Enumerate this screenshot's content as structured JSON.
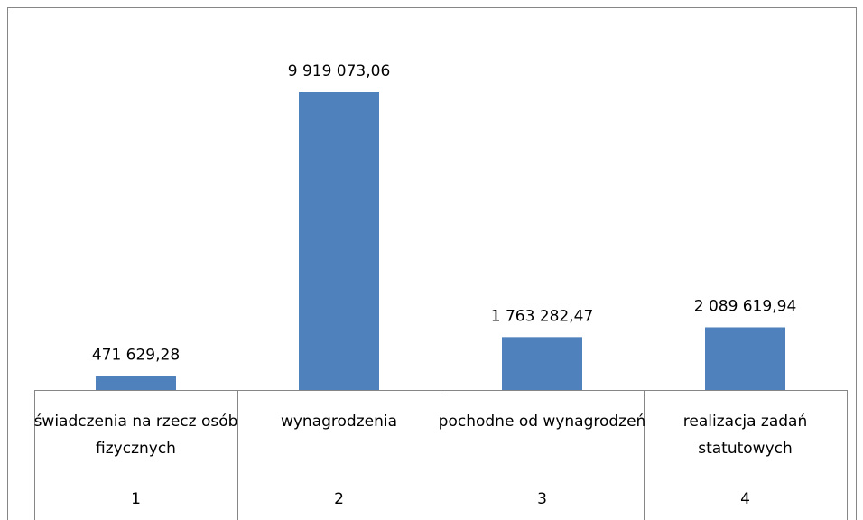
{
  "chart_data": {
    "type": "bar",
    "categories": [
      "świadczenia na rzecz osób fizycznych",
      "wynagrodzenia",
      "pochodne od wynagrodzeń",
      "realizacja zadań statutowych"
    ],
    "category_numbers": [
      "1",
      "2",
      "3",
      "4"
    ],
    "values": [
      471629.28,
      9919073.06,
      1763282.47,
      2089619.94
    ],
    "value_labels": [
      "471 629,28",
      "9 919 073,06",
      "1 763 282,47",
      "2 089 619,94"
    ],
    "color": "#4f81bd"
  }
}
